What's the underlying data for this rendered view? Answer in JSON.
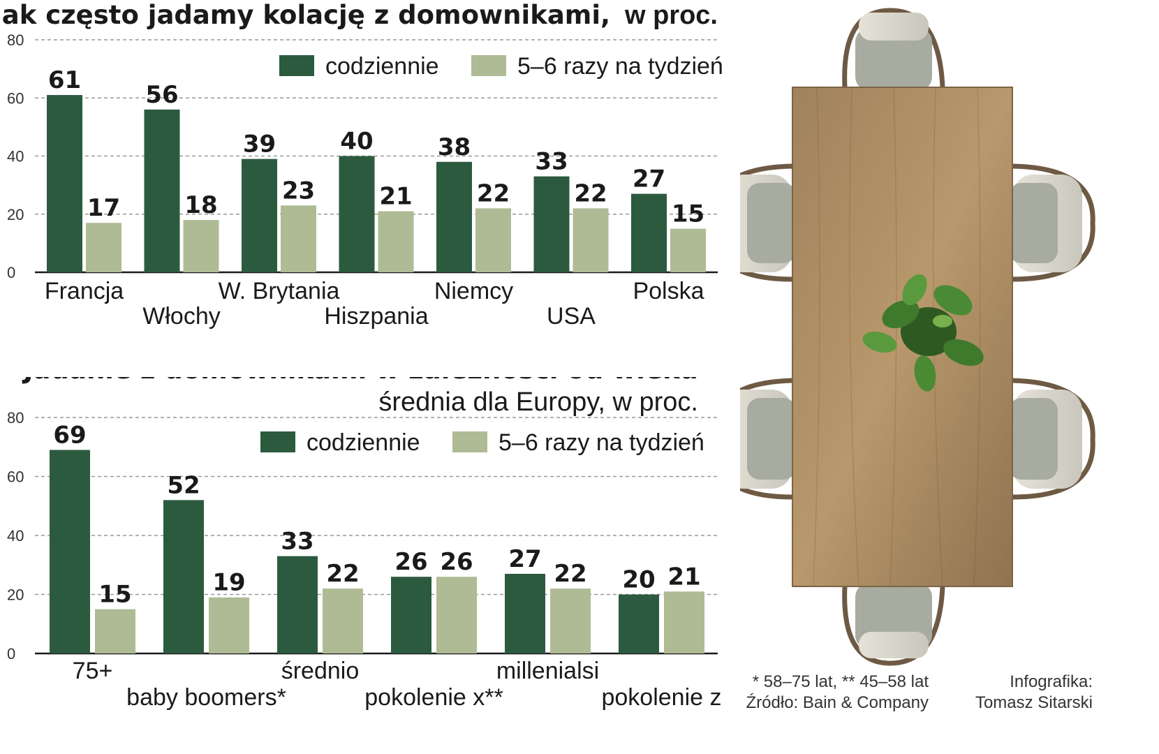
{
  "colors": {
    "daily": "#2c5a3f",
    "weekly": "#aebb94",
    "grid": "#999999",
    "axis": "#1a1a1a"
  },
  "chart_data": [
    {
      "type": "bar",
      "title_bold": "Jak często jadamy kolację z domownikami,",
      "title_light": "w proc.",
      "categories": [
        "Francja",
        "Włochy",
        "W. Brytania",
        "Hiszpania",
        "Niemcy",
        "USA",
        "Polska"
      ],
      "series": [
        {
          "name": "codziennie",
          "values": [
            61,
            56,
            39,
            40,
            38,
            33,
            27
          ]
        },
        {
          "name": "5–6 razy na tydzień",
          "values": [
            17,
            18,
            23,
            21,
            22,
            22,
            15
          ]
        }
      ],
      "ylim": [
        0,
        80
      ],
      "yticks": [
        "0",
        "20",
        "40",
        "60",
        "80"
      ],
      "grid": true,
      "legend": "top-right"
    },
    {
      "type": "bar",
      "title_bold": "Jadanie z domownikami w zależności od wieku",
      "subtitle": "średnia dla Europy, w proc.",
      "categories": [
        "75+",
        "baby boomers*",
        "średnio",
        "pokolenie x**",
        "millenialsi",
        "pokolenie z"
      ],
      "series": [
        {
          "name": "codziennie",
          "values": [
            69,
            52,
            33,
            26,
            27,
            20
          ]
        },
        {
          "name": "5–6 razy na tydzień",
          "values": [
            15,
            19,
            22,
            26,
            22,
            21
          ]
        }
      ],
      "ylim": [
        0,
        80
      ],
      "yticks": [
        "0",
        "20",
        "40",
        "60",
        "80"
      ],
      "grid": true,
      "legend": "top-right"
    }
  ],
  "notes": {
    "footnote": "* 58–75 lat, ** 45–58 lat",
    "source": "Źródło: Bain & Company",
    "credit_label": "Infografika:",
    "credit_name": "Tomasz Sitarski"
  }
}
